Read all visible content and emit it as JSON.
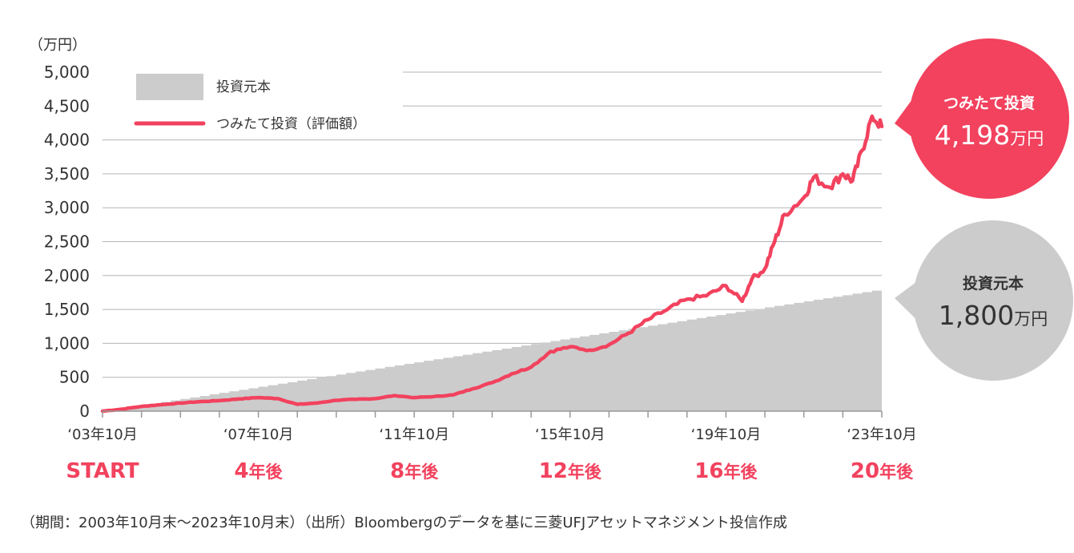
{
  "chart_data": {
    "type": "area",
    "y_unit_label": "（万円）",
    "ylim": [
      0,
      5000
    ],
    "y_ticks": [
      "0",
      "500",
      "1,000",
      "1,500",
      "2,000",
      "2,500",
      "3,000",
      "3,500",
      "4,000",
      "4,500",
      "5,000"
    ],
    "y_tick_values": [
      0,
      500,
      1000,
      1500,
      2000,
      2500,
      3000,
      3500,
      4000,
      4500,
      5000
    ],
    "grid": true,
    "legend_position": "top-left",
    "x_start": "2003-10",
    "x_end": "2023-10",
    "x_ticks": [
      {
        "date": "2003-10",
        "label": "‘03年10月",
        "milestone_num": "START",
        "milestone_suffix": ""
      },
      {
        "date": "2007-10",
        "label": "‘07年10月",
        "milestone_num": "4",
        "milestone_suffix": "年後"
      },
      {
        "date": "2011-10",
        "label": "‘11年10月",
        "milestone_num": "8",
        "milestone_suffix": "年後"
      },
      {
        "date": "2015-10",
        "label": "‘15年10月",
        "milestone_num": "12",
        "milestone_suffix": "年後"
      },
      {
        "date": "2019-10",
        "label": "‘19年10月",
        "milestone_num": "16",
        "milestone_suffix": "年後"
      },
      {
        "date": "2023-10",
        "label": "‘23年10月",
        "milestone_num": "20",
        "milestone_suffix": "年後"
      }
    ],
    "series": [
      {
        "name": "投資元本",
        "kind": "area",
        "color": "#cccccc",
        "points": [
          [
            "2003-10",
            0
          ],
          [
            "2004-10",
            90
          ],
          [
            "2005-10",
            180
          ],
          [
            "2006-10",
            270
          ],
          [
            "2007-10",
            360
          ],
          [
            "2008-10",
            450
          ],
          [
            "2009-10",
            540
          ],
          [
            "2010-10",
            630
          ],
          [
            "2011-10",
            720
          ],
          [
            "2012-10",
            810
          ],
          [
            "2013-10",
            900
          ],
          [
            "2014-10",
            990
          ],
          [
            "2015-10",
            1080
          ],
          [
            "2016-10",
            1170
          ],
          [
            "2017-10",
            1260
          ],
          [
            "2018-10",
            1350
          ],
          [
            "2019-10",
            1440
          ],
          [
            "2020-10",
            1530
          ],
          [
            "2021-10",
            1620
          ],
          [
            "2022-10",
            1710
          ],
          [
            "2023-10",
            1800
          ]
        ]
      },
      {
        "name": "つみたて投資（評価額）",
        "kind": "line",
        "color": "#f2425e",
        "points": [
          [
            "2003-10",
            0
          ],
          [
            "2004-04",
            30
          ],
          [
            "2004-10",
            70
          ],
          [
            "2005-04",
            95
          ],
          [
            "2005-10",
            120
          ],
          [
            "2006-04",
            140
          ],
          [
            "2006-10",
            155
          ],
          [
            "2007-04",
            180
          ],
          [
            "2007-10",
            200
          ],
          [
            "2008-04",
            185
          ],
          [
            "2008-10",
            100
          ],
          [
            "2009-04",
            120
          ],
          [
            "2009-10",
            160
          ],
          [
            "2010-04",
            175
          ],
          [
            "2010-10",
            185
          ],
          [
            "2011-04",
            230
          ],
          [
            "2011-10",
            200
          ],
          [
            "2012-04",
            215
          ],
          [
            "2012-10",
            240
          ],
          [
            "2013-04",
            330
          ],
          [
            "2013-10",
            420
          ],
          [
            "2014-04",
            550
          ],
          [
            "2014-10",
            650
          ],
          [
            "2015-04",
            880
          ],
          [
            "2015-10",
            950
          ],
          [
            "2016-04",
            900
          ],
          [
            "2016-10",
            980
          ],
          [
            "2017-04",
            1150
          ],
          [
            "2017-10",
            1350
          ],
          [
            "2018-04",
            1500
          ],
          [
            "2018-10",
            1650
          ],
          [
            "2019-04",
            1700
          ],
          [
            "2019-10",
            1850
          ],
          [
            "2020-03",
            1620
          ],
          [
            "2020-06",
            1950
          ],
          [
            "2020-10",
            2100
          ],
          [
            "2021-01",
            2500
          ],
          [
            "2021-04",
            2900
          ],
          [
            "2021-10",
            3150
          ],
          [
            "2022-01",
            3450
          ],
          [
            "2022-06",
            3300
          ],
          [
            "2022-10",
            3500
          ],
          [
            "2023-01",
            3400
          ],
          [
            "2023-04",
            3850
          ],
          [
            "2023-07",
            4350
          ],
          [
            "2023-10",
            4198
          ]
        ]
      }
    ],
    "legend": [
      {
        "label": "投資元本",
        "kind": "area",
        "color": "#cccccc"
      },
      {
        "label": "つみたて投資（評価額）",
        "kind": "line",
        "color": "#f2425e"
      }
    ],
    "callouts": [
      {
        "title": "つみたて投資",
        "value": "4,198",
        "unit": "万円",
        "fill": "#f2425e",
        "text_color": "#ffffff"
      },
      {
        "title": "投資元本",
        "value": "1,800",
        "unit": "万円",
        "fill": "#cccccc",
        "text_color": "#333333"
      }
    ]
  },
  "footnote": "（期間：2003年10月末〜2023年10月末）（出所）Bloombergのデータを基に三菱UFJアセットマネジメント投信作成"
}
